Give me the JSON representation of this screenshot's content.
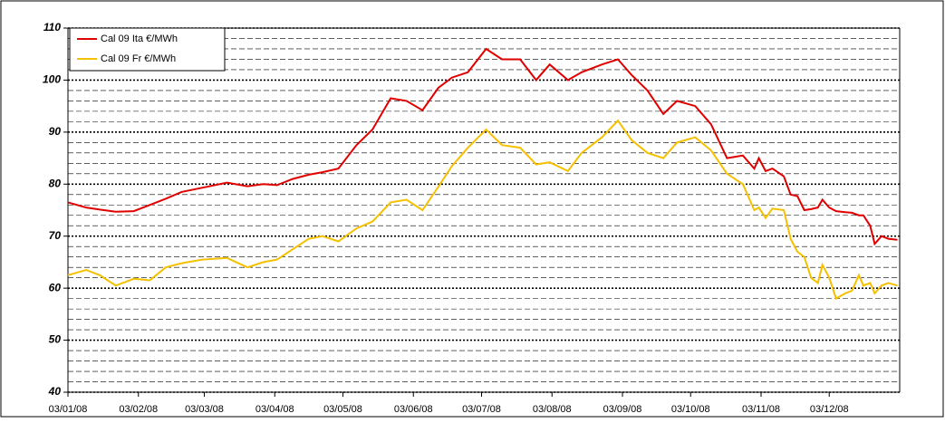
{
  "chart_data": {
    "type": "line",
    "x": [
      "2008-01-03",
      "2008-01-11",
      "2008-01-17",
      "2008-01-24",
      "2008-02-01",
      "2008-02-08",
      "2008-02-15",
      "2008-02-22",
      "2008-03-02",
      "2008-03-13",
      "2008-03-22",
      "2008-03-29",
      "2008-04-04",
      "2008-04-11",
      "2008-04-18",
      "2008-04-24",
      "2008-05-01",
      "2008-05-09",
      "2008-05-16",
      "2008-05-24",
      "2008-05-31",
      "2008-06-07",
      "2008-06-14",
      "2008-06-20",
      "2008-06-27",
      "2008-07-05",
      "2008-07-12",
      "2008-07-20",
      "2008-07-27",
      "2008-08-02",
      "2008-08-10",
      "2008-08-16",
      "2008-08-25",
      "2008-09-01",
      "2008-09-07",
      "2008-09-14",
      "2008-09-21",
      "2008-09-27",
      "2008-10-05",
      "2008-10-12",
      "2008-10-19",
      "2008-10-26",
      "2008-10-31",
      "2008-11-02",
      "2008-11-05",
      "2008-11-08",
      "2008-11-13",
      "2008-11-16",
      "2008-11-19",
      "2008-11-22",
      "2008-11-25",
      "2008-11-28",
      "2008-11-30",
      "2008-12-03",
      "2008-12-06",
      "2008-12-10",
      "2008-12-13",
      "2008-12-16",
      "2008-12-18",
      "2008-12-21",
      "2008-12-23",
      "2008-12-26",
      "2008-12-29",
      "2009-01-02"
    ],
    "series": [
      {
        "name": "Cal 09 Ita €/MWh",
        "color": "#e00000",
        "values": [
          76.5,
          75.5,
          75.1,
          74.7,
          74.8,
          76,
          77.2,
          78.5,
          79.3,
          80.3,
          79.6,
          80,
          79.8,
          81,
          81.8,
          82.3,
          83,
          87.5,
          90.5,
          96.5,
          96,
          94.2,
          98.5,
          100.5,
          101.5,
          106,
          104,
          104,
          100,
          103,
          100,
          101.5,
          103,
          104,
          101,
          98,
          93.5,
          96,
          95,
          91.5,
          85,
          85.5,
          83,
          85,
          82.5,
          83,
          81.5,
          78,
          77.7,
          75,
          75.2,
          75.5,
          77,
          75.5,
          74.8,
          74.6,
          74.5,
          74,
          74,
          72,
          68.5,
          70,
          69.5,
          69.3
        ]
      },
      {
        "name": "Cal 09 Fr €/MWh",
        "color": "#f5c000",
        "values": [
          62.5,
          63.5,
          62.5,
          60.5,
          61.8,
          61.5,
          64,
          64.8,
          65.5,
          65.8,
          64,
          65,
          65.5,
          67.5,
          69.5,
          70,
          69,
          71.5,
          72.8,
          76.5,
          77,
          75,
          79.5,
          83.5,
          87,
          90.5,
          87.5,
          87,
          83.8,
          84.2,
          82.5,
          86,
          89,
          92.2,
          88.5,
          86,
          85,
          88,
          89,
          86.5,
          82,
          80,
          75,
          75.5,
          73.5,
          75.3,
          75,
          69.5,
          67,
          66,
          62,
          61,
          64.5,
          62,
          58,
          59,
          59.5,
          62.5,
          60.5,
          61,
          59,
          60.5,
          61,
          60.5
        ]
      }
    ],
    "xlim": [
      "2008-01-03",
      "2009-01-03"
    ],
    "xticks": [
      {
        "value": "2008-01-03",
        "label": "03/01/08"
      },
      {
        "value": "2008-02-03",
        "label": "03/02/08"
      },
      {
        "value": "2008-03-03",
        "label": "03/03/08"
      },
      {
        "value": "2008-04-03",
        "label": "03/04/08"
      },
      {
        "value": "2008-05-03",
        "label": "03/05/08"
      },
      {
        "value": "2008-06-03",
        "label": "03/06/08"
      },
      {
        "value": "2008-07-03",
        "label": "03/07/08"
      },
      {
        "value": "2008-08-03",
        "label": "03/08/08"
      },
      {
        "value": "2008-09-03",
        "label": "03/09/08"
      },
      {
        "value": "2008-10-03",
        "label": "03/10/08"
      },
      {
        "value": "2008-11-03",
        "label": "03/11/08"
      },
      {
        "value": "2008-12-03",
        "label": "03/12/08"
      }
    ],
    "ylim": [
      40,
      110
    ],
    "yticks": [
      40,
      50,
      60,
      70,
      80,
      90,
      100,
      110
    ],
    "minor_yticks": [
      42,
      44,
      46,
      48,
      52,
      54,
      56,
      58,
      62,
      64,
      66,
      68,
      72,
      74,
      76,
      78,
      82,
      84,
      86,
      88,
      92,
      94,
      96,
      98,
      102,
      104,
      106,
      108
    ],
    "grid": true,
    "legend": "upper left"
  }
}
